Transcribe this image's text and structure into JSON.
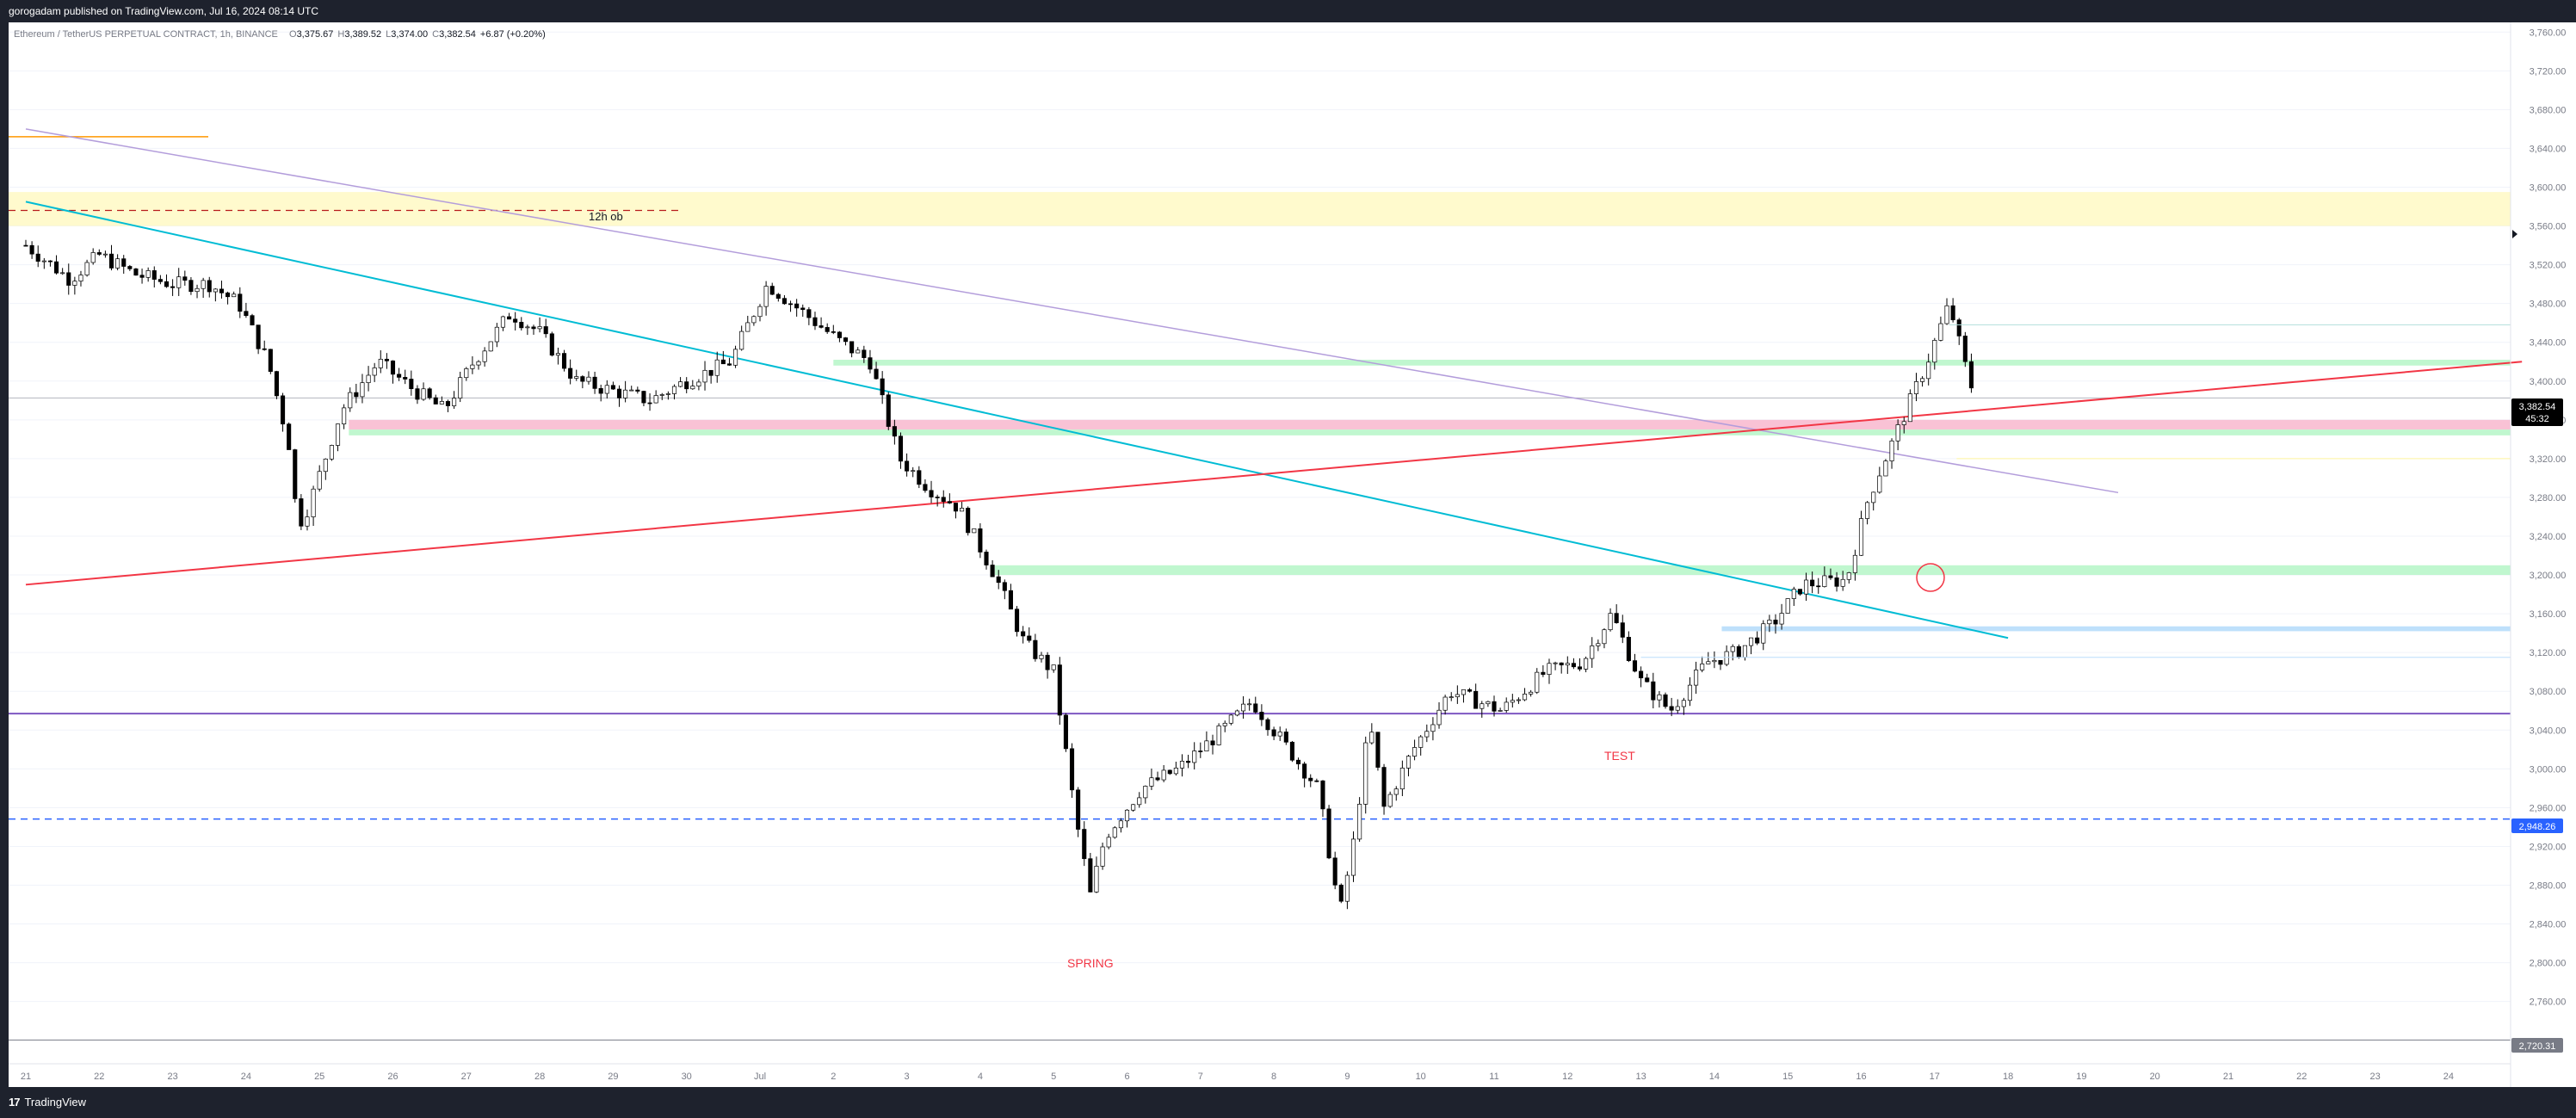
{
  "header": {
    "publisher_line": "gorogadam published on TradingView.com, Jul 16, 2024 08:14 UTC"
  },
  "footer": {
    "brand": "TradingView",
    "logo_glyph": "17"
  },
  "symbol_info": {
    "name": "Ethereum / TetherUS PERPETUAL CONTRACT, 1h, BINANCE",
    "open_label": "O",
    "open": "3,375.67",
    "high_label": "H",
    "high": "3,389.52",
    "low_label": "L",
    "low": "3,374.00",
    "close_label": "C",
    "close": "3,382.54",
    "change": "+6.87 (+0.20%)"
  },
  "colors": {
    "up_candle": "#ffffff",
    "down_candle": "#000000",
    "wick": "#000000",
    "teal_trendline": "#00bcd4",
    "purple_trendline": "#b39ddb",
    "red_trendline": "#f23645",
    "support_line": "#7e57c2",
    "dashed_level": "#2962ff",
    "green_zone": "#b9f6ca",
    "pink_zone": "#f8bbd0",
    "yellow_zone": "#fff9c4",
    "orange_line": "#ff9800",
    "annotation_text": "#f23645",
    "price_badge": "#000000",
    "dashed_badge": "#2962ff"
  },
  "price_badges": {
    "current_price": "3,382.54",
    "countdown": "45:32",
    "dashed_level": "2,948.26",
    "bottom_level": "2,720.31"
  },
  "annotations": [
    {
      "id": "zone-label",
      "text": "12h ob"
    },
    {
      "id": "spring-label",
      "text": "SPRING"
    },
    {
      "id": "test-label",
      "text": "TEST"
    }
  ],
  "chart_data": {
    "type": "candlestick",
    "title": "Ethereum / TetherUS PERPETUAL CONTRACT, 1h, BINANCE",
    "y_range": [
      2720,
      3770
    ],
    "y_ticks": [
      "3,760.00",
      "3,720.00",
      "3,680.00",
      "3,640.00",
      "3,600.00",
      "3,560.00",
      "3,520.00",
      "3,480.00",
      "3,440.00",
      "3,400.00",
      "3,360.00",
      "3,320.00",
      "3,280.00",
      "3,240.00",
      "3,200.00",
      "3,160.00",
      "3,120.00",
      "3,080.00",
      "3,040.00",
      "3,000.00",
      "2,960.00",
      "2,920.00",
      "2,880.00",
      "2,840.00",
      "2,800.00",
      "2,760.00"
    ],
    "x_ticks": [
      "21",
      "22",
      "23",
      "24",
      "25",
      "26",
      "27",
      "28",
      "29",
      "30",
      "Jul",
      "2",
      "3",
      "4",
      "5",
      "6",
      "7",
      "8",
      "9",
      "10",
      "11",
      "12",
      "13",
      "14",
      "15",
      "16",
      "17",
      "18",
      "19",
      "20",
      "21",
      "22",
      "23",
      "24"
    ],
    "price_path": [
      {
        "day": 0.0,
        "price": 3540
      },
      {
        "day": 0.6,
        "price": 3505
      },
      {
        "day": 1.0,
        "price": 3530
      },
      {
        "day": 1.5,
        "price": 3510
      },
      {
        "day": 2.0,
        "price": 3500
      },
      {
        "day": 2.5,
        "price": 3500
      },
      {
        "day": 2.9,
        "price": 3480
      },
      {
        "day": 3.3,
        "price": 3420
      },
      {
        "day": 3.6,
        "price": 3330
      },
      {
        "day": 3.7,
        "price": 3250
      },
      {
        "day": 3.85,
        "price": 3270
      },
      {
        "day": 4.3,
        "price": 3370
      },
      {
        "day": 4.8,
        "price": 3420
      },
      {
        "day": 5.3,
        "price": 3390
      },
      {
        "day": 5.7,
        "price": 3370
      },
      {
        "day": 6.1,
        "price": 3420
      },
      {
        "day": 6.6,
        "price": 3470
      },
      {
        "day": 7.0,
        "price": 3450
      },
      {
        "day": 7.5,
        "price": 3400
      },
      {
        "day": 8.0,
        "price": 3390
      },
      {
        "day": 8.5,
        "price": 3380
      },
      {
        "day": 9.0,
        "price": 3400
      },
      {
        "day": 9.6,
        "price": 3420
      },
      {
        "day": 10.1,
        "price": 3500
      },
      {
        "day": 10.6,
        "price": 3470
      },
      {
        "day": 11.1,
        "price": 3440
      },
      {
        "day": 11.5,
        "price": 3420
      },
      {
        "day": 11.9,
        "price": 3320
      },
      {
        "day": 12.3,
        "price": 3290
      },
      {
        "day": 12.7,
        "price": 3270
      },
      {
        "day": 13.2,
        "price": 3200
      },
      {
        "day": 13.6,
        "price": 3130
      },
      {
        "day": 14.0,
        "price": 3100
      },
      {
        "day": 14.3,
        "price": 2950
      },
      {
        "day": 14.5,
        "price": 2870
      },
      {
        "day": 14.7,
        "price": 2930
      },
      {
        "day": 15.2,
        "price": 2980
      },
      {
        "day": 15.7,
        "price": 3000
      },
      {
        "day": 16.3,
        "price": 3040
      },
      {
        "day": 16.7,
        "price": 3070
      },
      {
        "day": 17.2,
        "price": 3020
      },
      {
        "day": 17.6,
        "price": 2980
      },
      {
        "day": 17.9,
        "price": 2850
      },
      {
        "day": 18.1,
        "price": 2930
      },
      {
        "day": 18.3,
        "price": 3050
      },
      {
        "day": 18.5,
        "price": 2960
      },
      {
        "day": 18.9,
        "price": 3020
      },
      {
        "day": 19.4,
        "price": 3080
      },
      {
        "day": 20.1,
        "price": 3060
      },
      {
        "day": 20.7,
        "price": 3100
      },
      {
        "day": 21.2,
        "price": 3110
      },
      {
        "day": 21.6,
        "price": 3160
      },
      {
        "day": 22.0,
        "price": 3090
      },
      {
        "day": 22.4,
        "price": 3060
      },
      {
        "day": 22.9,
        "price": 3110
      },
      {
        "day": 23.3,
        "price": 3120
      },
      {
        "day": 23.8,
        "price": 3150
      },
      {
        "day": 24.2,
        "price": 3190
      },
      {
        "day": 24.8,
        "price": 3195
      },
      {
        "day": 25.1,
        "price": 3280
      },
      {
        "day": 25.5,
        "price": 3350
      },
      {
        "day": 25.9,
        "price": 3420
      },
      {
        "day": 26.2,
        "price": 3480
      },
      {
        "day": 26.4,
        "price": 3420
      },
      {
        "day": 26.55,
        "price": 3382.54
      }
    ],
    "candle_range": {
      "first_day": 0.0,
      "last_day": 26.55
    },
    "horizontal_levels": [
      {
        "id": "yellow-zone",
        "from": 3560,
        "to": 3595
      },
      {
        "id": "green-zone-top",
        "from": 3416,
        "to": 3422
      },
      {
        "id": "pink-zone",
        "from": 3350,
        "to": 3360
      },
      {
        "id": "green-zone-mid",
        "from": 3344,
        "to": 3350
      },
      {
        "id": "green-zone-low",
        "from": 3200,
        "to": 3210
      },
      {
        "id": "blue-zone",
        "from": 3142,
        "to": 3147
      },
      {
        "id": "support-line",
        "price": 3057
      },
      {
        "id": "dashed-level",
        "price": 2948.26
      },
      {
        "id": "bottom-line",
        "price": 2720.31
      },
      {
        "id": "orange-line",
        "price": 3652
      },
      {
        "id": "dashed-red-line",
        "price": 3576
      }
    ],
    "trendlines": [
      {
        "id": "teal-trendline",
        "points": [
          {
            "day": 0.0,
            "price": 3585
          },
          {
            "day": 27.0,
            "price": 3135
          }
        ]
      },
      {
        "id": "purple-trendline",
        "points": [
          {
            "day": 0.0,
            "price": 3660
          },
          {
            "day": 28.5,
            "price": 3285
          }
        ]
      },
      {
        "id": "red-trendline",
        "points": [
          {
            "day": 0.0,
            "price": 3190
          },
          {
            "day": 34.0,
            "price": 3420
          }
        ]
      }
    ]
  }
}
